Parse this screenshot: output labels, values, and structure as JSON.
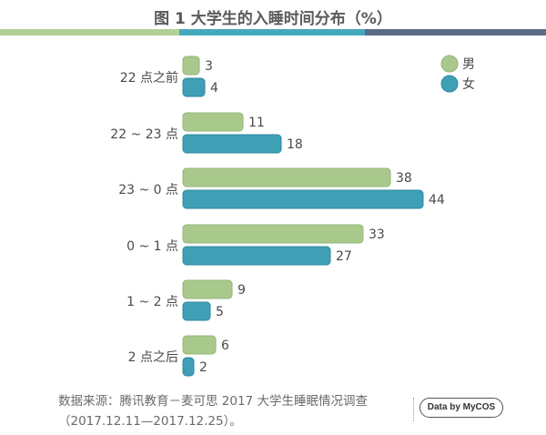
{
  "title": "图 1  大学生的入睡时间分布（%）",
  "footnote_line1": "数据来源：腾讯教育－麦可思 2017 大学生睡眠情况调查",
  "footnote_line2": "（2017.12.11—2017.12.25）。",
  "badge_text": "Data by MyCOS",
  "colors": {
    "male": "#a9c98c",
    "female": "#3f9fb4",
    "male_stroke": "#93b677",
    "female_stroke": "#2f8aa0"
  },
  "chart_data": {
    "type": "bar",
    "orientation": "horizontal",
    "title": "图 1  大学生的入睡时间分布（%）",
    "categories": [
      "22 点之前",
      "22 ~ 23 点",
      "23 ~ 0 点",
      "0 ~ 1 点",
      "1 ~ 2 点",
      "2 点之后"
    ],
    "series": [
      {
        "name": "男",
        "values": [
          3,
          11,
          38,
          33,
          9,
          6
        ]
      },
      {
        "name": "女",
        "values": [
          4,
          18,
          44,
          27,
          5,
          2
        ]
      }
    ],
    "legend_position": "top-right",
    "grid": false,
    "xlim": [
      0,
      44
    ]
  }
}
